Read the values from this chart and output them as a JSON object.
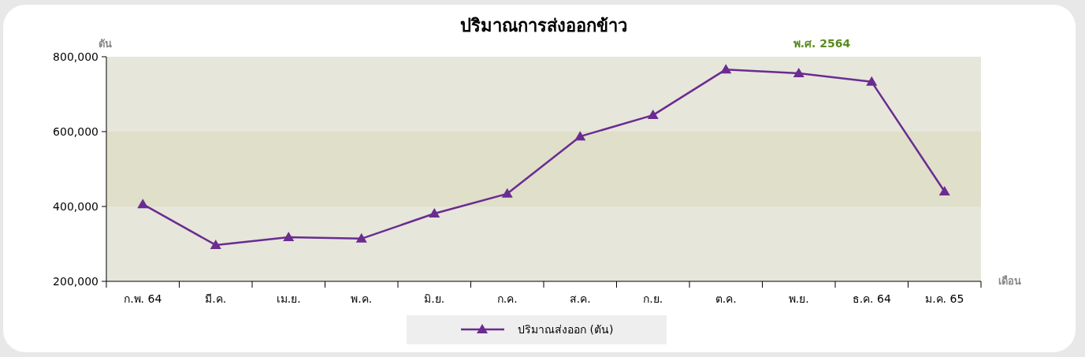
{
  "chart_data": {
    "type": "line",
    "title": "ปริมาณการส่งออกข้าว",
    "ylabel": "ตัน",
    "xlabel": "เดือน",
    "annotations": [
      "พ.ศ. 2564"
    ],
    "categories": [
      "ก.พ. 64",
      "มี.ค.",
      "เม.ย.",
      "พ.ค.",
      "มิ.ย.",
      "ก.ค.",
      "ส.ค.",
      "ก.ย.",
      "ต.ค.",
      "พ.ย.",
      "ธ.ค. 64",
      "ม.ค. 65"
    ],
    "series": [
      {
        "name": "ปริมาณส่งออก (ตัน)",
        "color": "#6a2c91",
        "values": [
          406000,
          297000,
          318000,
          314000,
          381000,
          434000,
          587000,
          644000,
          766000,
          756000,
          733000,
          440000
        ]
      }
    ],
    "ylim": [
      200000,
      800000
    ],
    "yticks": [
      {
        "value": 200000,
        "label": "200,000"
      },
      {
        "value": 400000,
        "label": "400,000"
      },
      {
        "value": 600000,
        "label": "600,000"
      },
      {
        "value": 800000,
        "label": "800,000"
      }
    ],
    "bands": [
      {
        "axis": "y",
        "from": 200000,
        "to": 400000,
        "color": "#e6e6da"
      },
      {
        "axis": "y",
        "from": 400000,
        "to": 600000,
        "color": "#dfdfca"
      },
      {
        "axis": "y",
        "from": 600000,
        "to": 800000,
        "color": "#e6e6da"
      }
    ],
    "marker": "triangle",
    "grid": false,
    "legend": "bottom"
  }
}
